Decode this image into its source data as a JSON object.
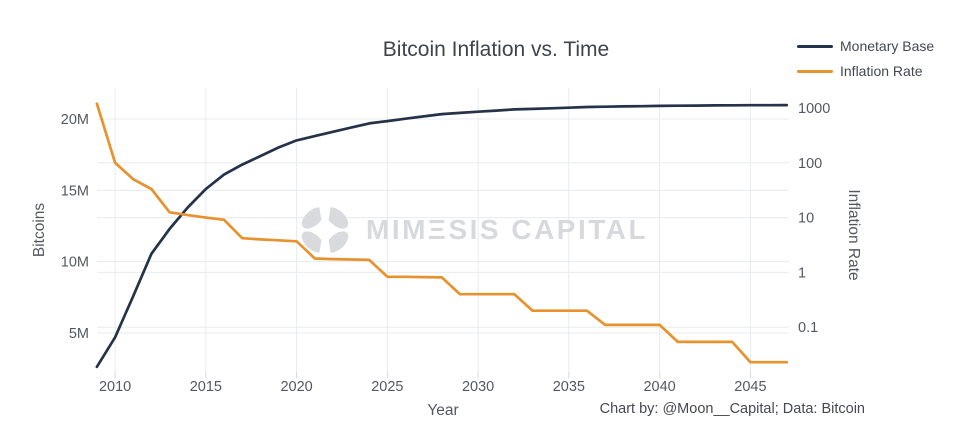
{
  "caption": "Chart by: @Moon__Capital; Data: Bitcoin",
  "watermark": {
    "text": "MIMΞSIS CAPITAL"
  },
  "colors": {
    "grid": "#e8ebee",
    "tick_mark": "#d5d8db",
    "tick_text": "#55595f",
    "monetary_base_line": "#24334a",
    "inflation_rate_line": "#e8922e",
    "watermark": "#d8dadd"
  },
  "chart_data": {
    "type": "line",
    "title": "Bitcoin Inflation vs. Time",
    "xlabel": "Year",
    "ylabel_left": "Bitcoins",
    "ylabel_right": "Inflation Rate",
    "x_range": [
      2009,
      2047
    ],
    "x_ticks": {
      "values": [
        2010,
        2015,
        2020,
        2025,
        2030,
        2035,
        2040,
        2045
      ],
      "labels": [
        "2010",
        "2015",
        "2020",
        "2025",
        "2030",
        "2035",
        "2040",
        "2045"
      ]
    },
    "y_left": {
      "unit": "millions of BTC",
      "tick_values": [
        5,
        10,
        15,
        20
      ],
      "tick_labels": [
        "5M",
        "10M",
        "15M",
        "20M"
      ]
    },
    "y_right": {
      "scale": "log",
      "tick_values": [
        0.1,
        1,
        10,
        100,
        1000
      ],
      "tick_labels": [
        "0.1",
        "1",
        "10",
        "100",
        "1000"
      ],
      "grid_values": [
        0.1,
        1,
        10,
        100
      ]
    },
    "legend_position": "top-right",
    "grid": true,
    "years": [
      2009,
      2010,
      2011,
      2012,
      2013,
      2014,
      2015,
      2016,
      2017,
      2018,
      2019,
      2020,
      2021,
      2022,
      2023,
      2024,
      2025,
      2026,
      2027,
      2028,
      2029,
      2030,
      2031,
      2032,
      2033,
      2034,
      2035,
      2036,
      2037,
      2038,
      2039,
      2040,
      2041,
      2042,
      2043,
      2044,
      2045,
      2046,
      2047
    ],
    "series": [
      {
        "name": "Monetary Base",
        "axis": "left",
        "unit": "millions of BTC",
        "color": "#24334a",
        "values": [
          2.63,
          4.7,
          7.6,
          10.55,
          12.3,
          13.8,
          15.1,
          16.1,
          16.8,
          17.4,
          18.0,
          18.5,
          18.8,
          19.1,
          19.4,
          19.69,
          19.85,
          20.02,
          20.18,
          20.34,
          20.43,
          20.51,
          20.59,
          20.67,
          20.71,
          20.75,
          20.79,
          20.84,
          20.86,
          20.88,
          20.9,
          20.92,
          20.93,
          20.94,
          20.95,
          20.96,
          20.964,
          20.969,
          20.974
        ]
      },
      {
        "name": "Inflation Rate",
        "axis": "right",
        "unit": "percent per year",
        "color": "#e8922e",
        "values": [
          1200,
          100,
          50,
          33.3,
          12.5,
          11.1,
          10,
          9.1,
          4.2,
          4.0,
          3.85,
          3.7,
          1.79,
          1.75,
          1.72,
          1.69,
          0.83,
          0.83,
          0.82,
          0.81,
          0.4,
          0.4,
          0.4,
          0.4,
          0.2,
          0.2,
          0.2,
          0.2,
          0.11,
          0.11,
          0.11,
          0.11,
          0.054,
          0.054,
          0.054,
          0.054,
          0.023,
          0.023,
          0.023
        ]
      }
    ]
  }
}
